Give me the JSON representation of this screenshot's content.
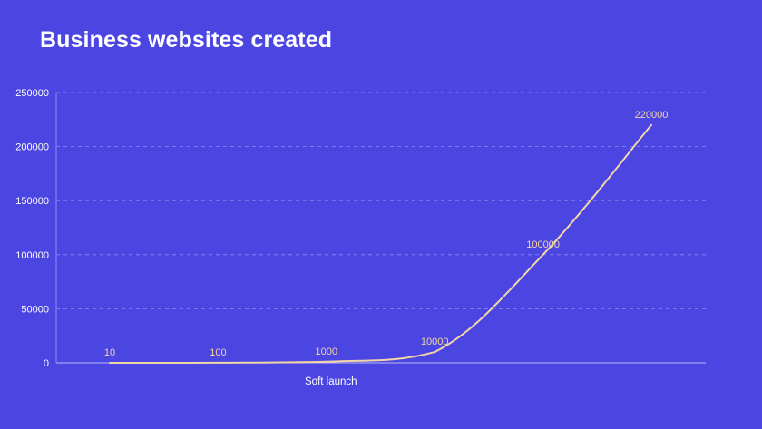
{
  "title": "Business websites created",
  "colors": {
    "background": "#4b45e2",
    "line": "#f3d6a6",
    "text": "#ffffff",
    "grid": "#8f8bf2"
  },
  "chart_data": {
    "type": "line",
    "title": "Business websites created",
    "xlabel": "",
    "ylabel": "",
    "ylim": [
      0,
      250000
    ],
    "yticks": [
      0,
      50000,
      100000,
      150000,
      200000,
      250000
    ],
    "grid": true,
    "legend": "none",
    "categories": [
      "",
      "",
      "Soft launch",
      "",
      "",
      ""
    ],
    "values": [
      10,
      100,
      1000,
      10000,
      100000,
      220000
    ],
    "data_labels": [
      "10",
      "100",
      "1000",
      "10000",
      "100000",
      "220000"
    ]
  }
}
